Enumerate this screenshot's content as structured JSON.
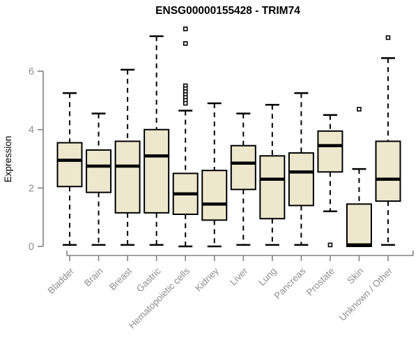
{
  "chart_data": {
    "type": "boxplot",
    "title": "ENSG00000155428 - TRIM74",
    "xlabel": "",
    "ylabel": "Expression",
    "yticks": [
      0,
      2,
      4,
      6
    ],
    "ylim": [
      -0.3,
      7.6
    ],
    "grid": false,
    "legend": false,
    "categories": [
      "Bladder",
      "Brain",
      "Breast",
      "Gastric",
      "Hematopoietic cells",
      "Kidney",
      "Liver",
      "Lung",
      "Pancreas",
      "Prostate",
      "Skin",
      "Unknown / Other"
    ],
    "boxes": [
      {
        "label": "Bladder",
        "low": 0.05,
        "q1": 2.05,
        "median": 2.95,
        "q3": 3.55,
        "high": 5.25,
        "outliers": []
      },
      {
        "label": "Brain",
        "low": 0.05,
        "q1": 1.85,
        "median": 2.75,
        "q3": 3.3,
        "high": 4.55,
        "outliers": []
      },
      {
        "label": "Breast",
        "low": 0.05,
        "q1": 1.15,
        "median": 2.75,
        "q3": 3.6,
        "high": 6.05,
        "outliers": []
      },
      {
        "label": "Gastric",
        "low": 0.05,
        "q1": 1.15,
        "median": 3.1,
        "q3": 4.0,
        "high": 7.2,
        "outliers": []
      },
      {
        "label": "Hematopoietic cells",
        "low": 0.0,
        "q1": 1.1,
        "median": 1.8,
        "q3": 2.5,
        "high": 4.65,
        "outliers": [
          7.45,
          6.95,
          5.5,
          5.4,
          5.3,
          5.2,
          5.1,
          5.0,
          4.9
        ]
      },
      {
        "label": "Kidney",
        "low": 0.0,
        "q1": 0.9,
        "median": 1.45,
        "q3": 2.6,
        "high": 4.9,
        "outliers": []
      },
      {
        "label": "Liver",
        "low": 0.05,
        "q1": 1.95,
        "median": 2.85,
        "q3": 3.45,
        "high": 4.55,
        "outliers": []
      },
      {
        "label": "Lung",
        "low": 0.05,
        "q1": 0.95,
        "median": 2.3,
        "q3": 3.1,
        "high": 4.85,
        "outliers": []
      },
      {
        "label": "Pancreas",
        "low": 0.05,
        "q1": 1.4,
        "median": 2.55,
        "q3": 3.2,
        "high": 5.25,
        "outliers": []
      },
      {
        "label": "Prostate",
        "low": 1.2,
        "q1": 2.55,
        "median": 3.45,
        "q3": 3.95,
        "high": 4.5,
        "outliers": [
          0.05
        ]
      },
      {
        "label": "Skin",
        "low": 0.0,
        "q1": 0.0,
        "median": 0.05,
        "q3": 1.45,
        "high": 2.65,
        "outliers": [
          4.7
        ]
      },
      {
        "label": "Unknown / Other",
        "low": 0.05,
        "q1": 1.55,
        "median": 2.3,
        "q3": 3.6,
        "high": 6.45,
        "outliers": [
          7.15
        ]
      }
    ],
    "colors": {
      "box_fill": "#EDE8CD",
      "box_stroke": "#000000",
      "median": "#000000",
      "whisker": "#000000",
      "outlier_stroke": "#000000",
      "outlier_fill": "#FFFFFF",
      "axis": "#808080",
      "tick_label": "#8E8E8E",
      "title": "#000000",
      "background": "#FFFFFF"
    }
  }
}
